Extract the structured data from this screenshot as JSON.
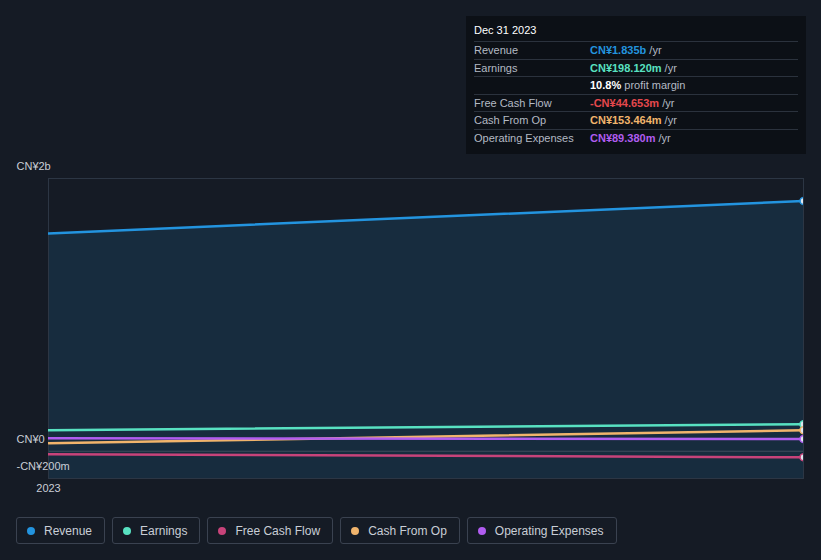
{
  "chart_data": {
    "type": "line",
    "categories": [
      "2023",
      null
    ],
    "series": [
      {
        "name": "Revenue",
        "color": "#2394df",
        "values": [
          1597,
          1835
        ]
      },
      {
        "name": "Earnings",
        "color": "#58e1c1",
        "values": [
          154,
          198.12
        ]
      },
      {
        "name": "Free Cash Flow",
        "color": "#c8437a",
        "values": [
          -22,
          -44.653
        ]
      },
      {
        "name": "Cash From Op",
        "color": "#f0b46c",
        "values": [
          59,
          153.464
        ]
      },
      {
        "name": "Operating Expenses",
        "color": "#b05cf0",
        "values": [
          95,
          89.38
        ]
      }
    ],
    "ylim": [
      -200,
      2000
    ],
    "yticks": [
      {
        "value": -200,
        "label": "-CN¥200m"
      },
      {
        "value": 0,
        "label": "CN¥0"
      },
      {
        "value": 2000,
        "label": "CN¥2b"
      }
    ],
    "grid": true,
    "legend": "bottom",
    "tooltip": {
      "title": "Dec 31 2023",
      "rows": [
        {
          "label": "Revenue",
          "text": "CN¥1.835b",
          "unit": "/yr",
          "color": "#2394df"
        },
        {
          "label": "Earnings",
          "text": "CN¥198.120m",
          "unit": "/yr",
          "color": "#58e1c1"
        },
        {
          "text": "10.8%",
          "unit": "profit margin",
          "color": "#ffffff"
        },
        {
          "label": "Free Cash Flow",
          "text": "-CN¥44.653m",
          "unit": "/yr",
          "color": "#e5484d"
        },
        {
          "label": "Cash From Op",
          "text": "CN¥153.464m",
          "unit": "/yr",
          "color": "#f0b46c"
        },
        {
          "label": "Operating Expenses",
          "text": "CN¥89.380m",
          "unit": "/yr",
          "color": "#b05cf0"
        }
      ]
    }
  }
}
